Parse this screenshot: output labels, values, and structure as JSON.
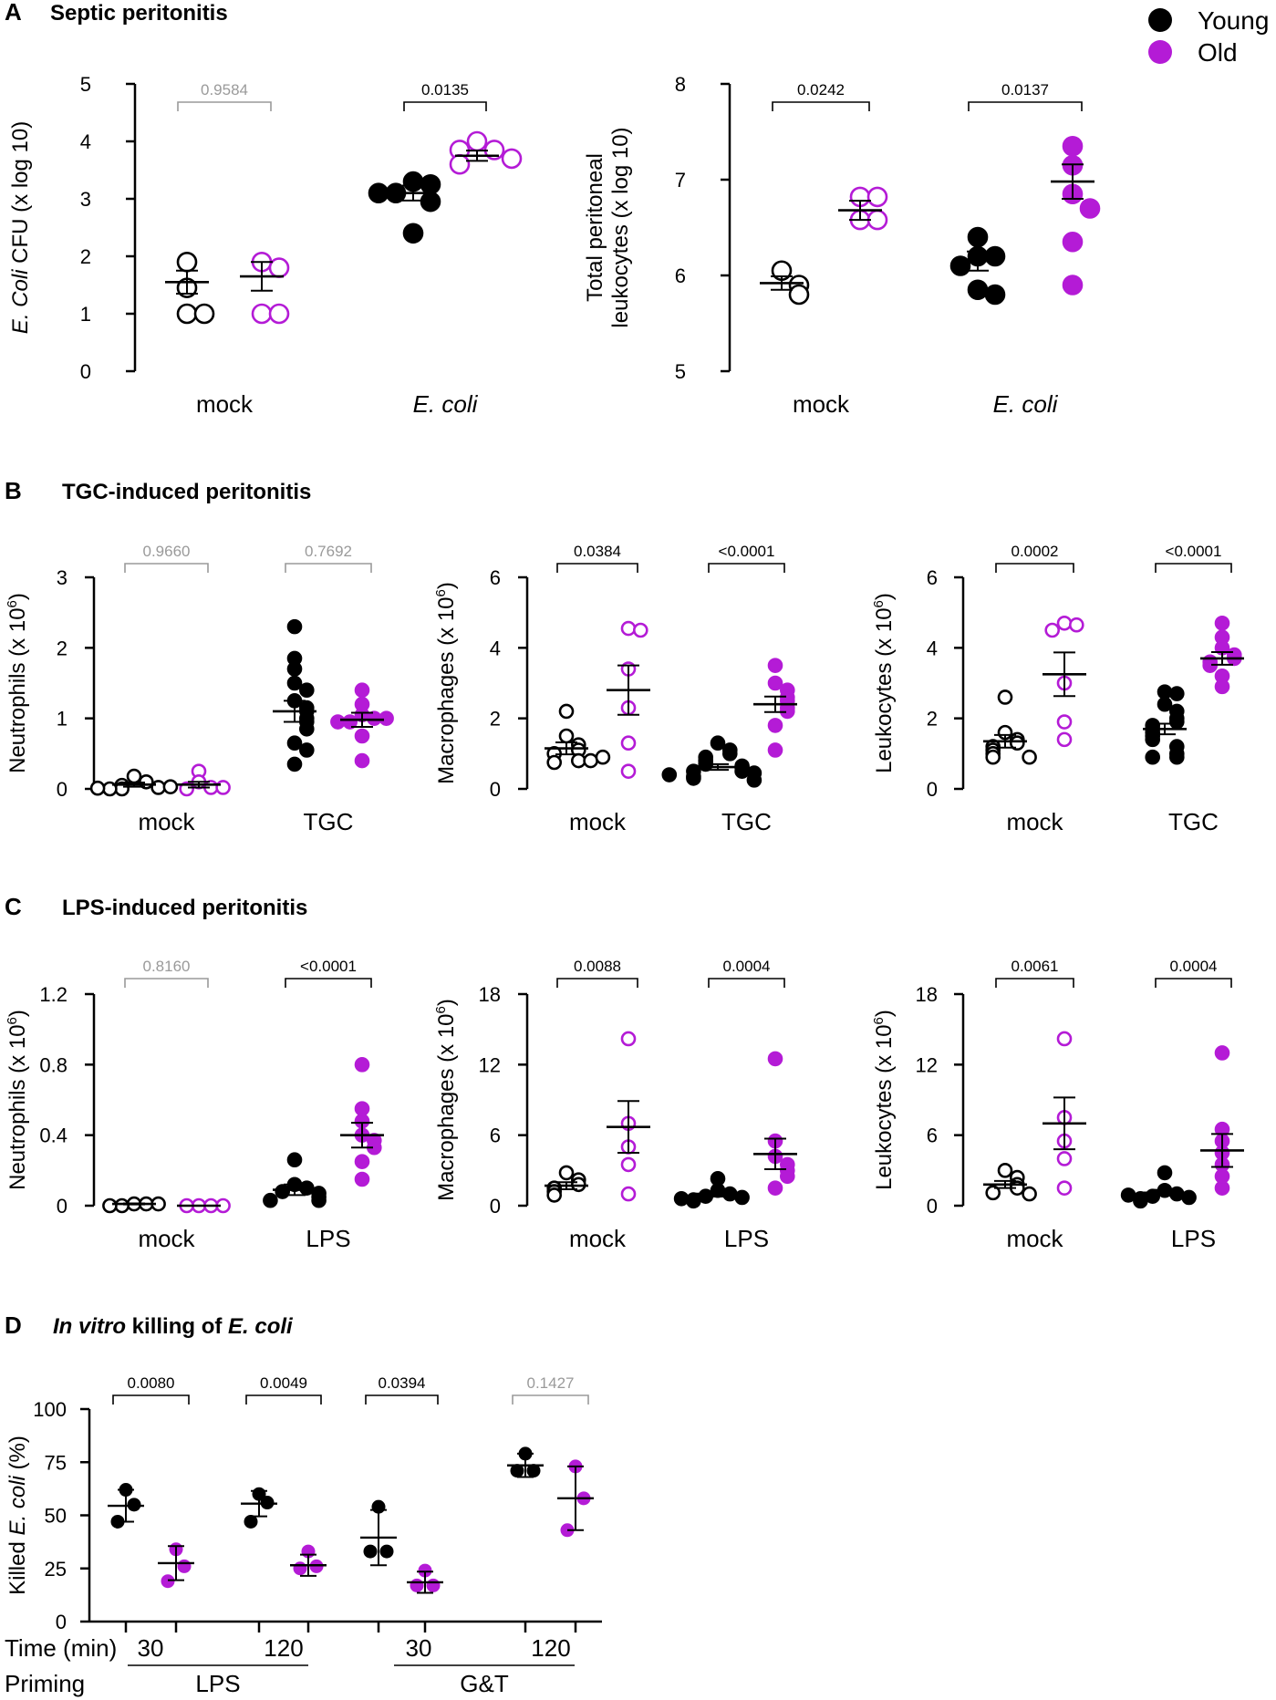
{
  "legend": {
    "items": [
      {
        "label": "Young",
        "color": "#000000"
      },
      {
        "label": "Old",
        "color": "#b41bd6"
      }
    ]
  },
  "colors": {
    "young": "#000000",
    "old": "#b41bd6",
    "nonsig": "#9a9a9a"
  },
  "sections": [
    {
      "letter": "A",
      "title": "Septic peritonitis"
    },
    {
      "letter": "B",
      "title": "TGC-induced peritonitis"
    },
    {
      "letter": "C",
      "title": "LPS-induced peritonitis"
    },
    {
      "letter": "D",
      "title_italic": "In vitro",
      "title_mid": " killing of ",
      "title_end": "E. coli"
    }
  ],
  "chart_data": [
    {
      "id": "A1",
      "type": "scatter",
      "section": "A",
      "ylabel": "E. Coli CFU (x log 10)",
      "ylim": [
        0,
        5
      ],
      "yticks": [
        "0",
        "1",
        "2",
        "3",
        "4",
        "5"
      ],
      "categories": [
        "mock",
        "E. coli"
      ],
      "series": [
        {
          "name": "Young",
          "filled": [
            false,
            true
          ],
          "values": [
            [
              1.9,
              1.45,
              1.0,
              1.0
            ],
            [
              3.3,
              3.25,
              3.1,
              2.95,
              3.1,
              2.4
            ]
          ],
          "mean": [
            1.55,
            3.1
          ],
          "sem": [
            0.2,
            0.13
          ]
        },
        {
          "name": "Old",
          "filled": [
            false,
            false
          ],
          "values": [
            [
              1.9,
              1.8,
              1.0,
              1.0
            ],
            [
              4.0,
              3.85,
              3.85,
              3.6,
              3.7
            ]
          ],
          "mean": [
            1.65,
            3.75
          ],
          "sem": [
            0.25,
            0.09
          ]
        }
      ],
      "pvalues": [
        {
          "label": "0.9584",
          "significant": false
        },
        {
          "label": "0.0135",
          "significant": true
        }
      ]
    },
    {
      "id": "A2",
      "type": "scatter",
      "section": "A",
      "ylabel_lines": [
        "Total peritoneal",
        "leukocytes (x log 10)"
      ],
      "ylim": [
        5,
        8
      ],
      "yticks": [
        "5",
        "6",
        "7",
        "8"
      ],
      "categories": [
        "mock",
        "E. coli"
      ],
      "series": [
        {
          "name": "Young",
          "filled": [
            false,
            true
          ],
          "values": [
            [
              6.05,
              5.9,
              5.8
            ],
            [
              6.4,
              6.2,
              6.2,
              6.1,
              5.85,
              5.8
            ]
          ],
          "mean": [
            5.92,
            6.15
          ],
          "sem": [
            0.07,
            0.1
          ]
        },
        {
          "name": "Old",
          "filled": [
            false,
            true
          ],
          "values": [
            [
              6.82,
              6.82,
              6.58,
              6.58
            ],
            [
              7.35,
              7.15,
              6.85,
              6.7,
              6.35,
              5.9
            ]
          ],
          "mean": [
            6.68,
            6.98
          ],
          "sem": [
            0.1,
            0.18
          ]
        }
      ],
      "pvalues": [
        {
          "label": "0.0242",
          "significant": true
        },
        {
          "label": "0.0137",
          "significant": true
        }
      ]
    },
    {
      "id": "B1",
      "type": "scatter",
      "section": "B",
      "ylabel": "Neutrophils (x 10",
      "ylabel_sup": "6",
      "ylim": [
        0,
        3
      ],
      "yticks": [
        "0",
        "1",
        "2",
        "3"
      ],
      "categories": [
        "mock",
        "TGC"
      ],
      "series": [
        {
          "name": "Young",
          "filled": [
            false,
            true
          ],
          "values": [
            [
              0.18,
              0.1,
              0.05,
              0.0,
              0.02,
              0.0,
              0.03,
              0.01
            ],
            [
              2.3,
              1.85,
              1.7,
              1.5,
              1.4,
              1.25,
              1.15,
              1.1,
              1.0,
              0.95,
              0.85,
              0.65,
              0.55,
              0.35
            ]
          ],
          "mean": [
            0.06,
            1.1
          ],
          "sem": [
            0.03,
            0.15
          ]
        },
        {
          "name": "Old",
          "filled": [
            false,
            true
          ],
          "values": [
            [
              0.25,
              0.1,
              0.02,
              0.0,
              0.02
            ],
            [
              1.4,
              1.2,
              1.05,
              1.0,
              0.95,
              1.0,
              0.95,
              0.75,
              0.4
            ]
          ],
          "mean": [
            0.06,
            0.98
          ],
          "sem": [
            0.04,
            0.1
          ]
        }
      ],
      "pvalues": [
        {
          "label": "0.9660",
          "significant": false
        },
        {
          "label": "0.7692",
          "significant": false
        }
      ]
    },
    {
      "id": "B2",
      "type": "scatter",
      "section": "B",
      "ylabel": "Macrophages (x 10",
      "ylabel_sup": "6",
      "ylim": [
        0,
        6
      ],
      "yticks": [
        "0",
        "2",
        "4",
        "6"
      ],
      "categories": [
        "mock",
        "TGC"
      ],
      "series": [
        {
          "name": "Young",
          "filled": [
            false,
            true
          ],
          "values": [
            [
              2.2,
              1.5,
              1.25,
              1.1,
              1.0,
              0.8,
              0.75,
              0.8,
              0.9
            ],
            [
              1.3,
              1.1,
              1.0,
              0.9,
              0.8,
              0.7,
              0.65,
              0.6,
              0.5,
              0.5,
              0.45,
              0.35,
              0.3,
              0.25,
              0.4
            ]
          ],
          "mean": [
            1.15,
            0.62
          ],
          "sem": [
            0.17,
            0.08
          ]
        },
        {
          "name": "Old",
          "filled": [
            false,
            true
          ],
          "values": [
            [
              4.55,
              4.5,
              3.4,
              2.3,
              1.3,
              0.5
            ],
            [
              3.5,
              3.0,
              2.8,
              2.6,
              2.5,
              2.3,
              2.2,
              1.8,
              1.1
            ]
          ],
          "mean": [
            2.8,
            2.4
          ],
          "sem": [
            0.7,
            0.22
          ]
        }
      ],
      "pvalues": [
        {
          "label": "0.0384",
          "significant": true
        },
        {
          "label": "<0.0001",
          "significant": true
        }
      ]
    },
    {
      "id": "B3",
      "type": "scatter",
      "section": "B",
      "ylabel": "Leukocytes (x 10",
      "ylabel_sup": "6",
      "ylim": [
        0,
        6
      ],
      "yticks": [
        "0",
        "2",
        "4",
        "6"
      ],
      "categories": [
        "mock",
        "TGC"
      ],
      "series": [
        {
          "name": "Young",
          "filled": [
            false,
            true
          ],
          "values": [
            [
              2.6,
              1.6,
              1.4,
              1.3,
              1.2,
              1.1,
              1.0,
              0.9,
              0.9
            ],
            [
              2.75,
              2.7,
              2.4,
              2.2,
              2.0,
              1.9,
              1.8,
              1.7,
              1.6,
              1.5,
              1.4,
              1.2,
              1.0,
              0.9,
              0.9
            ]
          ],
          "mean": [
            1.35,
            1.7
          ],
          "sem": [
            0.18,
            0.15
          ]
        },
        {
          "name": "Old",
          "filled": [
            false,
            true
          ],
          "values": [
            [
              4.7,
              4.65,
              4.5,
              3.0,
              1.9,
              1.4
            ],
            [
              4.7,
              4.3,
              4.0,
              3.8,
              3.7,
              3.6,
              3.5,
              3.2,
              2.9
            ]
          ],
          "mean": [
            3.25,
            3.7
          ],
          "sem": [
            0.62,
            0.18
          ]
        }
      ],
      "pvalues": [
        {
          "label": "0.0002",
          "significant": true
        },
        {
          "label": "<0.0001",
          "significant": true
        }
      ]
    },
    {
      "id": "C1",
      "type": "scatter",
      "section": "C",
      "ylabel": "Neutrophils (x 10",
      "ylabel_sup": "6",
      "ylim": [
        0,
        1.2
      ],
      "yticks": [
        "0",
        "0.4",
        "0.8",
        "1.2"
      ],
      "categories": [
        "mock",
        "LPS"
      ],
      "series": [
        {
          "name": "Young",
          "filled": [
            false,
            true
          ],
          "values": [
            [
              0.01,
              0.01,
              0.0,
              0.01,
              0.0
            ],
            [
              0.26,
              0.12,
              0.1,
              0.08,
              0.07,
              0.05,
              0.03,
              0.03
            ]
          ],
          "mean": [
            0.01,
            0.09
          ],
          "sem": [
            0.003,
            0.03
          ]
        },
        {
          "name": "Old",
          "filled": [
            false,
            true
          ],
          "values": [
            [
              0.0,
              0.0,
              0.0,
              0.0
            ],
            [
              0.8,
              0.55,
              0.48,
              0.4,
              0.37,
              0.33,
              0.25,
              0.15
            ]
          ],
          "mean": [
            0.0,
            0.4
          ],
          "sem": [
            0.0,
            0.07
          ]
        }
      ],
      "pvalues": [
        {
          "label": "0.8160",
          "significant": false
        },
        {
          "label": "<0.0001",
          "significant": true
        }
      ]
    },
    {
      "id": "C2",
      "type": "scatter",
      "section": "C",
      "ylabel": "Macrophages (x 10",
      "ylabel_sup": "6",
      "ylim": [
        0,
        18
      ],
      "yticks": [
        "0",
        "6",
        "12",
        "18"
      ],
      "categories": [
        "mock",
        "LPS"
      ],
      "series": [
        {
          "name": "Young",
          "filled": [
            false,
            true
          ],
          "values": [
            [
              2.8,
              2.2,
              1.8,
              1.5,
              1.2,
              0.9
            ],
            [
              2.3,
              1.3,
              1.0,
              0.8,
              0.7,
              0.5,
              0.4,
              0.6
            ]
          ],
          "mean": [
            1.7,
            1.0
          ],
          "sem": [
            0.3,
            0.22
          ]
        },
        {
          "name": "Old",
          "filled": [
            false,
            true
          ],
          "values": [
            [
              14.2,
              7.0,
              5.0,
              3.5,
              1.0
            ],
            [
              12.5,
              5.5,
              4.2,
              3.5,
              3.0,
              2.5,
              1.5
            ]
          ],
          "mean": [
            6.7,
            4.4
          ],
          "sem": [
            2.2,
            1.3
          ]
        }
      ],
      "pvalues": [
        {
          "label": "0.0088",
          "significant": true
        },
        {
          "label": "0.0004",
          "significant": true
        }
      ]
    },
    {
      "id": "C3",
      "type": "scatter",
      "section": "C",
      "ylabel": "Leukocytes (x 10",
      "ylabel_sup": "6",
      "ylim": [
        0,
        18
      ],
      "yticks": [
        "0",
        "6",
        "12",
        "18"
      ],
      "categories": [
        "mock",
        "LPS"
      ],
      "series": [
        {
          "name": "Young",
          "filled": [
            false,
            true
          ],
          "values": [
            [
              3.0,
              2.4,
              1.8,
              1.5,
              1.1,
              1.0
            ],
            [
              2.8,
              1.3,
              1.0,
              0.8,
              0.7,
              0.6,
              0.4,
              0.9
            ]
          ],
          "mean": [
            1.8,
            1.1
          ],
          "sem": [
            0.3,
            0.25
          ]
        },
        {
          "name": "Old",
          "filled": [
            false,
            true
          ],
          "values": [
            [
              14.2,
              7.5,
              5.5,
              4.0,
              1.5
            ],
            [
              13.0,
              6.5,
              5.5,
              4.5,
              3.5,
              2.5,
              1.5
            ]
          ],
          "mean": [
            7.0,
            4.7
          ],
          "sem": [
            2.2,
            1.4
          ]
        }
      ],
      "pvalues": [
        {
          "label": "0.0061",
          "significant": true
        },
        {
          "label": "0.0004",
          "significant": true
        }
      ]
    },
    {
      "id": "D",
      "type": "scatter",
      "section": "D",
      "ylabel": "Killed ",
      "ylabel_italic": "E. coli",
      "ylabel_end": " (%)",
      "ylim": [
        0,
        100
      ],
      "yticks": [
        "0",
        "25",
        "50",
        "75",
        "100"
      ],
      "row_labels": {
        "time": "Time (min)",
        "priming": "Priming"
      },
      "groups": [
        {
          "time": "30",
          "priming": "LPS",
          "young": [
            62,
            55,
            47
          ],
          "old": [
            34,
            26,
            19
          ],
          "young_mean": 54.5,
          "young_sd": 7.5,
          "old_mean": 27.5,
          "old_sd": 8
        },
        {
          "time": "120",
          "priming": "LPS",
          "young": [
            60,
            56,
            47
          ],
          "old": [
            33,
            26,
            25
          ],
          "young_mean": 55.5,
          "young_sd": 6,
          "old_mean": 26.5,
          "old_sd": 5
        },
        {
          "time": "30",
          "priming": "G&T",
          "young": [
            54,
            33,
            33
          ],
          "old": [
            24,
            17,
            17
          ],
          "young_mean": 39.5,
          "young_sd": 13,
          "old_mean": 18.5,
          "old_sd": 5
        },
        {
          "time": "120",
          "priming": "G&T",
          "young": [
            79,
            71,
            71
          ],
          "old": [
            73,
            58,
            43
          ],
          "young_mean": 73.5,
          "young_sd": 5.5,
          "old_mean": 58,
          "old_sd": 15
        }
      ],
      "pvalues": [
        {
          "label": "0.0080",
          "significant": true
        },
        {
          "label": "0.0049",
          "significant": true
        },
        {
          "label": "0.0394",
          "significant": true
        },
        {
          "label": "0.1427",
          "significant": false
        }
      ],
      "priming_labels": [
        "LPS",
        "G&T"
      ]
    }
  ]
}
